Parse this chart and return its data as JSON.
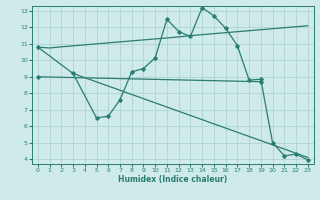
{
  "xlabel": "Humidex (Indice chaleur)",
  "bg_color": "#ceeaea",
  "grid_color": "#aed4d4",
  "line_color": "#2a7d6f",
  "xlim": [
    -0.5,
    23.5
  ],
  "ylim": [
    3.7,
    13.3
  ],
  "yticks": [
    4,
    5,
    6,
    7,
    8,
    9,
    10,
    11,
    12,
    13
  ],
  "xticks": [
    0,
    1,
    2,
    3,
    4,
    5,
    6,
    7,
    8,
    9,
    10,
    11,
    12,
    13,
    14,
    15,
    16,
    17,
    18,
    19,
    20,
    21,
    22,
    23
  ],
  "line1_x": [
    0,
    1,
    2,
    3,
    4,
    5,
    6,
    7,
    8,
    9,
    10,
    11,
    12,
    13,
    14,
    15,
    16,
    17,
    18,
    19,
    20,
    21,
    22,
    23
  ],
  "line1_y": [
    10.8,
    10.75,
    10.82,
    10.88,
    10.94,
    11.0,
    11.06,
    11.12,
    11.18,
    11.24,
    11.3,
    11.36,
    11.42,
    11.5,
    11.56,
    11.62,
    11.68,
    11.74,
    11.8,
    11.86,
    11.92,
    11.98,
    12.04,
    12.1
  ],
  "line2_x": [
    0,
    3,
    5,
    6,
    7,
    8,
    9,
    10,
    11,
    12,
    13,
    14,
    15,
    16,
    17,
    18,
    19,
    20,
    21,
    22,
    23
  ],
  "line2_y": [
    10.8,
    9.2,
    6.5,
    6.6,
    7.6,
    9.3,
    9.5,
    10.15,
    12.5,
    11.75,
    11.45,
    13.2,
    12.7,
    11.95,
    10.9,
    8.8,
    8.85,
    5.0,
    4.2,
    4.3,
    3.95
  ],
  "line3_x": [
    3,
    23
  ],
  "line3_y": [
    9.2,
    4.1
  ],
  "line4_x": [
    0,
    19
  ],
  "line4_y": [
    9.0,
    8.7
  ]
}
